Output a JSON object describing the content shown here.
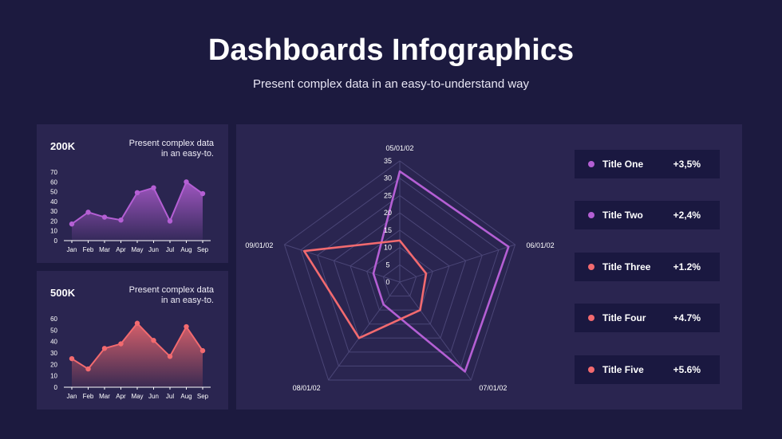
{
  "header": {
    "title": "Dashboards Infographics",
    "subtitle": "Present complex data in an easy-to-understand way"
  },
  "colors": {
    "background": "#1c1a3f",
    "panel": "#2a2550",
    "purple": "#b45fd4",
    "coral": "#f26a6f"
  },
  "panels": [
    {
      "value": "200K",
      "desc_line1": "Present complex data",
      "desc_line2": "in an easy-to."
    },
    {
      "value": "500K",
      "desc_line1": "Present complex data",
      "desc_line2": "in an easy-to."
    }
  ],
  "legend": [
    {
      "name": "Title One",
      "value": "+3,5%",
      "color": "#b45fd4"
    },
    {
      "name": "Title Two",
      "value": "+2,4%",
      "color": "#b45fd4"
    },
    {
      "name": "Title Three",
      "value": "+1.2%",
      "color": "#f26a6f"
    },
    {
      "name": "Title Four",
      "value": "+4.7%",
      "color": "#f26a6f"
    },
    {
      "name": "Title Five",
      "value": "+5.6%",
      "color": "#f26a6f"
    }
  ],
  "chart_data": [
    {
      "type": "area",
      "categories": [
        "Jan",
        "Feb",
        "Mar",
        "Apr",
        "May",
        "Jun",
        "Jul",
        "Aug",
        "Sep"
      ],
      "values": [
        17,
        29,
        24,
        21,
        49,
        54,
        20,
        60,
        48
      ],
      "yticks": [
        "0",
        "10",
        "20",
        "30",
        "40",
        "50",
        "60",
        "70"
      ],
      "ylim": [
        0,
        70
      ],
      "color": "#b45fd4"
    },
    {
      "type": "area",
      "categories": [
        "Jan",
        "Feb",
        "Mar",
        "Apr",
        "May",
        "Jun",
        "Jul",
        "Aug",
        "Sep"
      ],
      "values": [
        25,
        16,
        34,
        38,
        56,
        41,
        27,
        53,
        32
      ],
      "yticks": [
        "0",
        "10",
        "20",
        "30",
        "40",
        "50",
        "60"
      ],
      "ylim": [
        0,
        60
      ],
      "color": "#f26a6f"
    },
    {
      "type": "radar",
      "axes": [
        "05/01/02",
        "06/01/02",
        "07/01/02",
        "08/01/02",
        "09/01/02"
      ],
      "rticks": [
        "0",
        "5",
        "10",
        "15",
        "20",
        "25",
        "30",
        "35"
      ],
      "rlim": [
        0,
        35
      ],
      "series": [
        {
          "values": [
            32,
            33,
            32,
            8,
            8
          ],
          "color": "#b45fd4"
        },
        {
          "values": [
            12,
            8,
            10,
            20,
            29
          ],
          "color": "#f26a6f"
        }
      ]
    }
  ]
}
